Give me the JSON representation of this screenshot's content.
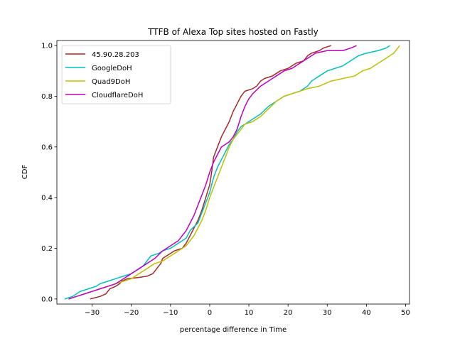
{
  "chart_data": {
    "type": "line",
    "title": "TTFB of Alexa Top sites hosted on Fastly",
    "xlabel": "percentage difference in Time",
    "ylabel": "CDF",
    "xlim": [
      -39,
      51
    ],
    "ylim": [
      -0.02,
      1.02
    ],
    "xticks": [
      -30,
      -20,
      -10,
      0,
      10,
      20,
      30,
      40,
      50
    ],
    "yticks": [
      0.0,
      0.2,
      0.4,
      0.6,
      0.8,
      1.0
    ],
    "xtick_labels": [
      "−30",
      "−20",
      "−10",
      "0",
      "10",
      "20",
      "30",
      "40",
      "50"
    ],
    "ytick_labels": [
      "0.0",
      "0.2",
      "0.4",
      "0.6",
      "0.8",
      "1.0"
    ],
    "grid": false,
    "legend_position": "top-left",
    "series": [
      {
        "name": "45.90.28.203",
        "color": "#a52a2a",
        "points": [
          [
            -30.5,
            0.0
          ],
          [
            -28,
            0.01
          ],
          [
            -26.5,
            0.02
          ],
          [
            -25.5,
            0.04
          ],
          [
            -24,
            0.05
          ],
          [
            -23,
            0.06
          ],
          [
            -22.5,
            0.07
          ],
          [
            -21,
            0.08
          ],
          [
            -18,
            0.085
          ],
          [
            -16,
            0.09
          ],
          [
            -14.5,
            0.1
          ],
          [
            -13.5,
            0.12
          ],
          [
            -12.5,
            0.14
          ],
          [
            -12,
            0.16
          ],
          [
            -11,
            0.17
          ],
          [
            -10,
            0.18
          ],
          [
            -9,
            0.19
          ],
          [
            -7,
            0.2
          ],
          [
            -6,
            0.22
          ],
          [
            -5,
            0.25
          ],
          [
            -4,
            0.28
          ],
          [
            -3,
            0.31
          ],
          [
            -2,
            0.35
          ],
          [
            -1,
            0.4
          ],
          [
            0,
            0.45
          ],
          [
            0.5,
            0.5
          ],
          [
            1,
            0.56
          ],
          [
            2,
            0.6
          ],
          [
            3,
            0.64
          ],
          [
            4,
            0.67
          ],
          [
            5,
            0.7
          ],
          [
            6,
            0.74
          ],
          [
            7,
            0.77
          ],
          [
            8,
            0.8
          ],
          [
            9,
            0.82
          ],
          [
            11,
            0.83
          ],
          [
            12,
            0.84
          ],
          [
            13,
            0.86
          ],
          [
            14,
            0.87
          ],
          [
            16,
            0.88
          ],
          [
            18,
            0.9
          ],
          [
            20,
            0.91
          ],
          [
            22,
            0.93
          ],
          [
            24,
            0.94
          ],
          [
            25,
            0.96
          ],
          [
            26,
            0.97
          ],
          [
            28,
            0.98
          ],
          [
            29,
            0.99
          ],
          [
            31,
            1.0
          ]
        ]
      },
      {
        "name": "GoogleDoH",
        "color": "#00bfbf",
        "points": [
          [
            -37,
            0.0
          ],
          [
            -35,
            0.01
          ],
          [
            -33,
            0.03
          ],
          [
            -31,
            0.04
          ],
          [
            -29,
            0.05
          ],
          [
            -28,
            0.06
          ],
          [
            -26,
            0.07
          ],
          [
            -24,
            0.08
          ],
          [
            -22,
            0.09
          ],
          [
            -20,
            0.1
          ],
          [
            -18,
            0.12
          ],
          [
            -17,
            0.13
          ],
          [
            -16,
            0.15
          ],
          [
            -15,
            0.17
          ],
          [
            -13,
            0.18
          ],
          [
            -12,
            0.19
          ],
          [
            -10,
            0.2
          ],
          [
            -8,
            0.22
          ],
          [
            -6,
            0.24
          ],
          [
            -5,
            0.27
          ],
          [
            -3,
            0.3
          ],
          [
            -2,
            0.34
          ],
          [
            -1,
            0.38
          ],
          [
            0,
            0.42
          ],
          [
            1,
            0.48
          ],
          [
            2,
            0.52
          ],
          [
            3,
            0.55
          ],
          [
            4,
            0.58
          ],
          [
            5,
            0.61
          ],
          [
            6,
            0.63
          ],
          [
            7,
            0.66
          ],
          [
            8,
            0.68
          ],
          [
            9,
            0.69
          ],
          [
            11,
            0.71
          ],
          [
            13,
            0.73
          ],
          [
            15,
            0.76
          ],
          [
            17,
            0.78
          ],
          [
            19,
            0.8
          ],
          [
            21,
            0.81
          ],
          [
            23,
            0.82
          ],
          [
            25,
            0.84
          ],
          [
            26,
            0.86
          ],
          [
            27,
            0.87
          ],
          [
            28,
            0.88
          ],
          [
            30,
            0.9
          ],
          [
            32,
            0.91
          ],
          [
            34,
            0.92
          ],
          [
            36,
            0.94
          ],
          [
            38,
            0.96
          ],
          [
            40,
            0.97
          ],
          [
            43,
            0.98
          ],
          [
            45,
            0.99
          ],
          [
            46,
            1.0
          ]
        ]
      },
      {
        "name": "Quad9DoH",
        "color": "#bfbf00",
        "points": [
          [
            -36,
            0.0
          ],
          [
            -34,
            0.01
          ],
          [
            -32,
            0.02
          ],
          [
            -30,
            0.03
          ],
          [
            -28,
            0.04
          ],
          [
            -26,
            0.05
          ],
          [
            -24,
            0.06
          ],
          [
            -22,
            0.07
          ],
          [
            -20,
            0.08
          ],
          [
            -18,
            0.1
          ],
          [
            -16,
            0.12
          ],
          [
            -14,
            0.14
          ],
          [
            -12,
            0.15
          ],
          [
            -10,
            0.17
          ],
          [
            -8,
            0.19
          ],
          [
            -6,
            0.21
          ],
          [
            -4,
            0.25
          ],
          [
            -3,
            0.28
          ],
          [
            -2,
            0.31
          ],
          [
            -1,
            0.35
          ],
          [
            0,
            0.4
          ],
          [
            1,
            0.44
          ],
          [
            2,
            0.48
          ],
          [
            3,
            0.52
          ],
          [
            4,
            0.56
          ],
          [
            5,
            0.6
          ],
          [
            6,
            0.63
          ],
          [
            7,
            0.65
          ],
          [
            8,
            0.67
          ],
          [
            9,
            0.69
          ],
          [
            11,
            0.7
          ],
          [
            13,
            0.72
          ],
          [
            15,
            0.75
          ],
          [
            17,
            0.78
          ],
          [
            19,
            0.8
          ],
          [
            21,
            0.81
          ],
          [
            23,
            0.82
          ],
          [
            25,
            0.83
          ],
          [
            28,
            0.84
          ],
          [
            31,
            0.86
          ],
          [
            34,
            0.87
          ],
          [
            37,
            0.88
          ],
          [
            39,
            0.9
          ],
          [
            41,
            0.91
          ],
          [
            43,
            0.93
          ],
          [
            45,
            0.95
          ],
          [
            46,
            0.96
          ],
          [
            47,
            0.97
          ],
          [
            48,
            0.99
          ],
          [
            48.5,
            1.0
          ]
        ]
      },
      {
        "name": "CloudflareDoH",
        "color": "#bf00bf",
        "points": [
          [
            -36,
            0.0
          ],
          [
            -34,
            0.01
          ],
          [
            -32,
            0.02
          ],
          [
            -30,
            0.03
          ],
          [
            -28,
            0.04
          ],
          [
            -26,
            0.05
          ],
          [
            -24,
            0.06
          ],
          [
            -22,
            0.08
          ],
          [
            -20,
            0.1
          ],
          [
            -18,
            0.12
          ],
          [
            -16,
            0.14
          ],
          [
            -14,
            0.16
          ],
          [
            -12,
            0.19
          ],
          [
            -10,
            0.21
          ],
          [
            -8,
            0.23
          ],
          [
            -6,
            0.27
          ],
          [
            -5,
            0.3
          ],
          [
            -4,
            0.33
          ],
          [
            -3,
            0.37
          ],
          [
            -2,
            0.41
          ],
          [
            -1,
            0.45
          ],
          [
            0,
            0.5
          ],
          [
            1,
            0.54
          ],
          [
            2,
            0.57
          ],
          [
            3,
            0.6
          ],
          [
            4,
            0.61
          ],
          [
            5,
            0.62
          ],
          [
            6,
            0.64
          ],
          [
            7,
            0.67
          ],
          [
            8,
            0.72
          ],
          [
            9,
            0.76
          ],
          [
            10,
            0.79
          ],
          [
            11,
            0.81
          ],
          [
            13,
            0.84
          ],
          [
            15,
            0.86
          ],
          [
            17,
            0.88
          ],
          [
            19,
            0.9
          ],
          [
            21,
            0.91
          ],
          [
            23,
            0.93
          ],
          [
            25,
            0.95
          ],
          [
            27,
            0.97
          ],
          [
            30,
            0.98
          ],
          [
            34,
            0.98
          ],
          [
            36,
            0.99
          ],
          [
            37.5,
            1.0
          ]
        ]
      }
    ]
  }
}
